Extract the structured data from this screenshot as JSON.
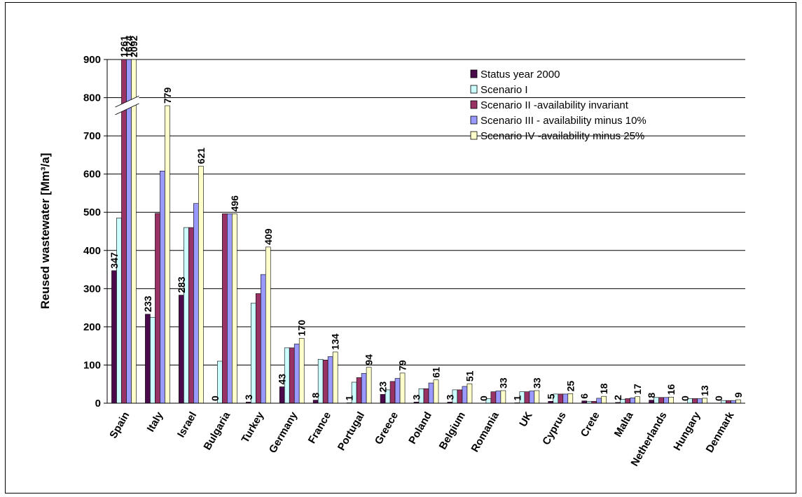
{
  "chart_data": {
    "type": "bar",
    "title": "",
    "xlabel": "",
    "ylabel": "Reused wastewater [Mm³/a]",
    "ylim": [
      0,
      900
    ],
    "yticks": [
      0,
      100,
      200,
      300,
      400,
      500,
      600,
      700,
      800,
      900
    ],
    "axis_break": [
      770,
      790
    ],
    "grid": true,
    "legend_position": "top-right",
    "categories": [
      "Spain",
      "Italy",
      "Israel",
      "Bulgaria",
      "Turkey",
      "Germany",
      "France",
      "Portugal",
      "Greece",
      "Poland",
      "Belgium",
      "Romania",
      "UK",
      "Cyprus",
      "Crete",
      "Malta",
      "Netherlands",
      "Hungary",
      "Denmark"
    ],
    "series": [
      {
        "name": "Status year 2000",
        "color": "#4B0A4B",
        "values": [
          347,
          233,
          283,
          0,
          3,
          43,
          8,
          1,
          23,
          3,
          3,
          0,
          1,
          5,
          6,
          2,
          8,
          0,
          0
        ]
      },
      {
        "name": "Scenario I",
        "color": "#CCFFFF",
        "values": [
          485,
          225,
          460,
          110,
          262,
          145,
          115,
          55,
          35,
          38,
          35,
          12,
          30,
          24,
          5,
          10,
          15,
          12,
          7
        ]
      },
      {
        "name": "Scenario II -availability invariant",
        "color": "#993366",
        "values": [
          1261,
          497,
          460,
          496,
          287,
          145,
          113,
          67,
          57,
          38,
          35,
          30,
          30,
          24,
          5,
          12,
          15,
          12,
          7
        ]
      },
      {
        "name": "Scenario III - availability minus 10%",
        "color": "#9999FF",
        "values": [
          1624,
          608,
          523,
          496,
          337,
          155,
          122,
          78,
          65,
          53,
          44,
          32,
          32,
          24,
          13,
          14,
          15,
          12,
          7
        ]
      },
      {
        "name": "Scenario IV -availability minus 25%",
        "color": "#FFFFCC",
        "values": [
          2092,
          779,
          621,
          496,
          409,
          170,
          134,
          94,
          79,
          61,
          51,
          33,
          33,
          25,
          18,
          17,
          16,
          13,
          9
        ]
      }
    ],
    "data_labels": [
      {
        "category": "Spain",
        "series": 0,
        "text": "347"
      },
      {
        "category": "Spain",
        "series": 2,
        "text": "1261"
      },
      {
        "category": "Spain",
        "series": 3,
        "text": "1624"
      },
      {
        "category": "Spain",
        "series": 4,
        "text": "2092"
      },
      {
        "category": "Italy",
        "series": 0,
        "text": "233"
      },
      {
        "category": "Italy",
        "series": 4,
        "text": "779"
      },
      {
        "category": "Israel",
        "series": 0,
        "text": "283"
      },
      {
        "category": "Israel",
        "series": 4,
        "text": "621"
      },
      {
        "category": "Bulgaria",
        "series": 0,
        "text": "0"
      },
      {
        "category": "Bulgaria",
        "series": 4,
        "text": "496"
      },
      {
        "category": "Turkey",
        "series": 0,
        "text": "3"
      },
      {
        "category": "Turkey",
        "series": 4,
        "text": "409"
      },
      {
        "category": "Germany",
        "series": 0,
        "text": "43"
      },
      {
        "category": "Germany",
        "series": 4,
        "text": "170"
      },
      {
        "category": "France",
        "series": 0,
        "text": "8"
      },
      {
        "category": "France",
        "series": 4,
        "text": "134"
      },
      {
        "category": "Portugal",
        "series": 0,
        "text": "1"
      },
      {
        "category": "Portugal",
        "series": 4,
        "text": "94"
      },
      {
        "category": "Greece",
        "series": 0,
        "text": "23"
      },
      {
        "category": "Greece",
        "series": 4,
        "text": "79"
      },
      {
        "category": "Poland",
        "series": 0,
        "text": "3"
      },
      {
        "category": "Poland",
        "series": 4,
        "text": "61"
      },
      {
        "category": "Belgium",
        "series": 0,
        "text": "3"
      },
      {
        "category": "Belgium",
        "series": 4,
        "text": "51"
      },
      {
        "category": "Romania",
        "series": 0,
        "text": "0"
      },
      {
        "category": "Romania",
        "series": 4,
        "text": "33"
      },
      {
        "category": "UK",
        "series": 0,
        "text": "1"
      },
      {
        "category": "UK",
        "series": 4,
        "text": "33"
      },
      {
        "category": "Cyprus",
        "series": 0,
        "text": "5"
      },
      {
        "category": "Cyprus",
        "series": 4,
        "text": "25"
      },
      {
        "category": "Crete",
        "series": 0,
        "text": "6"
      },
      {
        "category": "Crete",
        "series": 4,
        "text": "18"
      },
      {
        "category": "Malta",
        "series": 0,
        "text": "2"
      },
      {
        "category": "Malta",
        "series": 4,
        "text": "17"
      },
      {
        "category": "Netherlands",
        "series": 0,
        "text": "8"
      },
      {
        "category": "Netherlands",
        "series": 4,
        "text": "16"
      },
      {
        "category": "Hungary",
        "series": 0,
        "text": "0"
      },
      {
        "category": "Hungary",
        "series": 4,
        "text": "13"
      },
      {
        "category": "Denmark",
        "series": 0,
        "text": "0"
      },
      {
        "category": "Denmark",
        "series": 4,
        "text": "9"
      }
    ]
  }
}
